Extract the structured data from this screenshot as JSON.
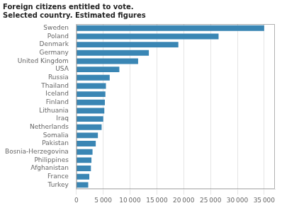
{
  "chart_data": {
    "type": "bar",
    "orientation": "horizontal",
    "title": "Foreign citizens entitled to vote. Selected country. Estimated figures",
    "categories": [
      "Sweden",
      "Poland",
      "Denmark",
      "Germany",
      "United Kingdom",
      "USA",
      "Russia",
      "Thailand",
      "Iceland",
      "Finland",
      "Lithuania",
      "Iraq",
      "Netherlands",
      "Somalia",
      "Pakistan",
      "Bosnia-Herzegovina",
      "Philippines",
      "Afghanistan",
      "France",
      "Turkey"
    ],
    "values": [
      35000,
      26500,
      19000,
      13500,
      11500,
      8000,
      6200,
      5500,
      5400,
      5300,
      5200,
      5000,
      4700,
      4000,
      3600,
      3000,
      2800,
      2700,
      2400,
      2200
    ],
    "color": "#3a86b4",
    "xlim": [
      0,
      37000
    ],
    "xticks": [
      0,
      {
        "value": 5000,
        "label": "5 000"
      },
      {
        "value": 10000,
        "label": "10 000"
      },
      {
        "value": 15000,
        "label": "15 000"
      },
      {
        "value": 20000,
        "label": "20 000"
      },
      {
        "value": 25000,
        "label": "25 000"
      },
      {
        "value": 30000,
        "label": "30 000"
      },
      {
        "value": 35000,
        "label": "35 000"
      }
    ],
    "grid": true
  }
}
